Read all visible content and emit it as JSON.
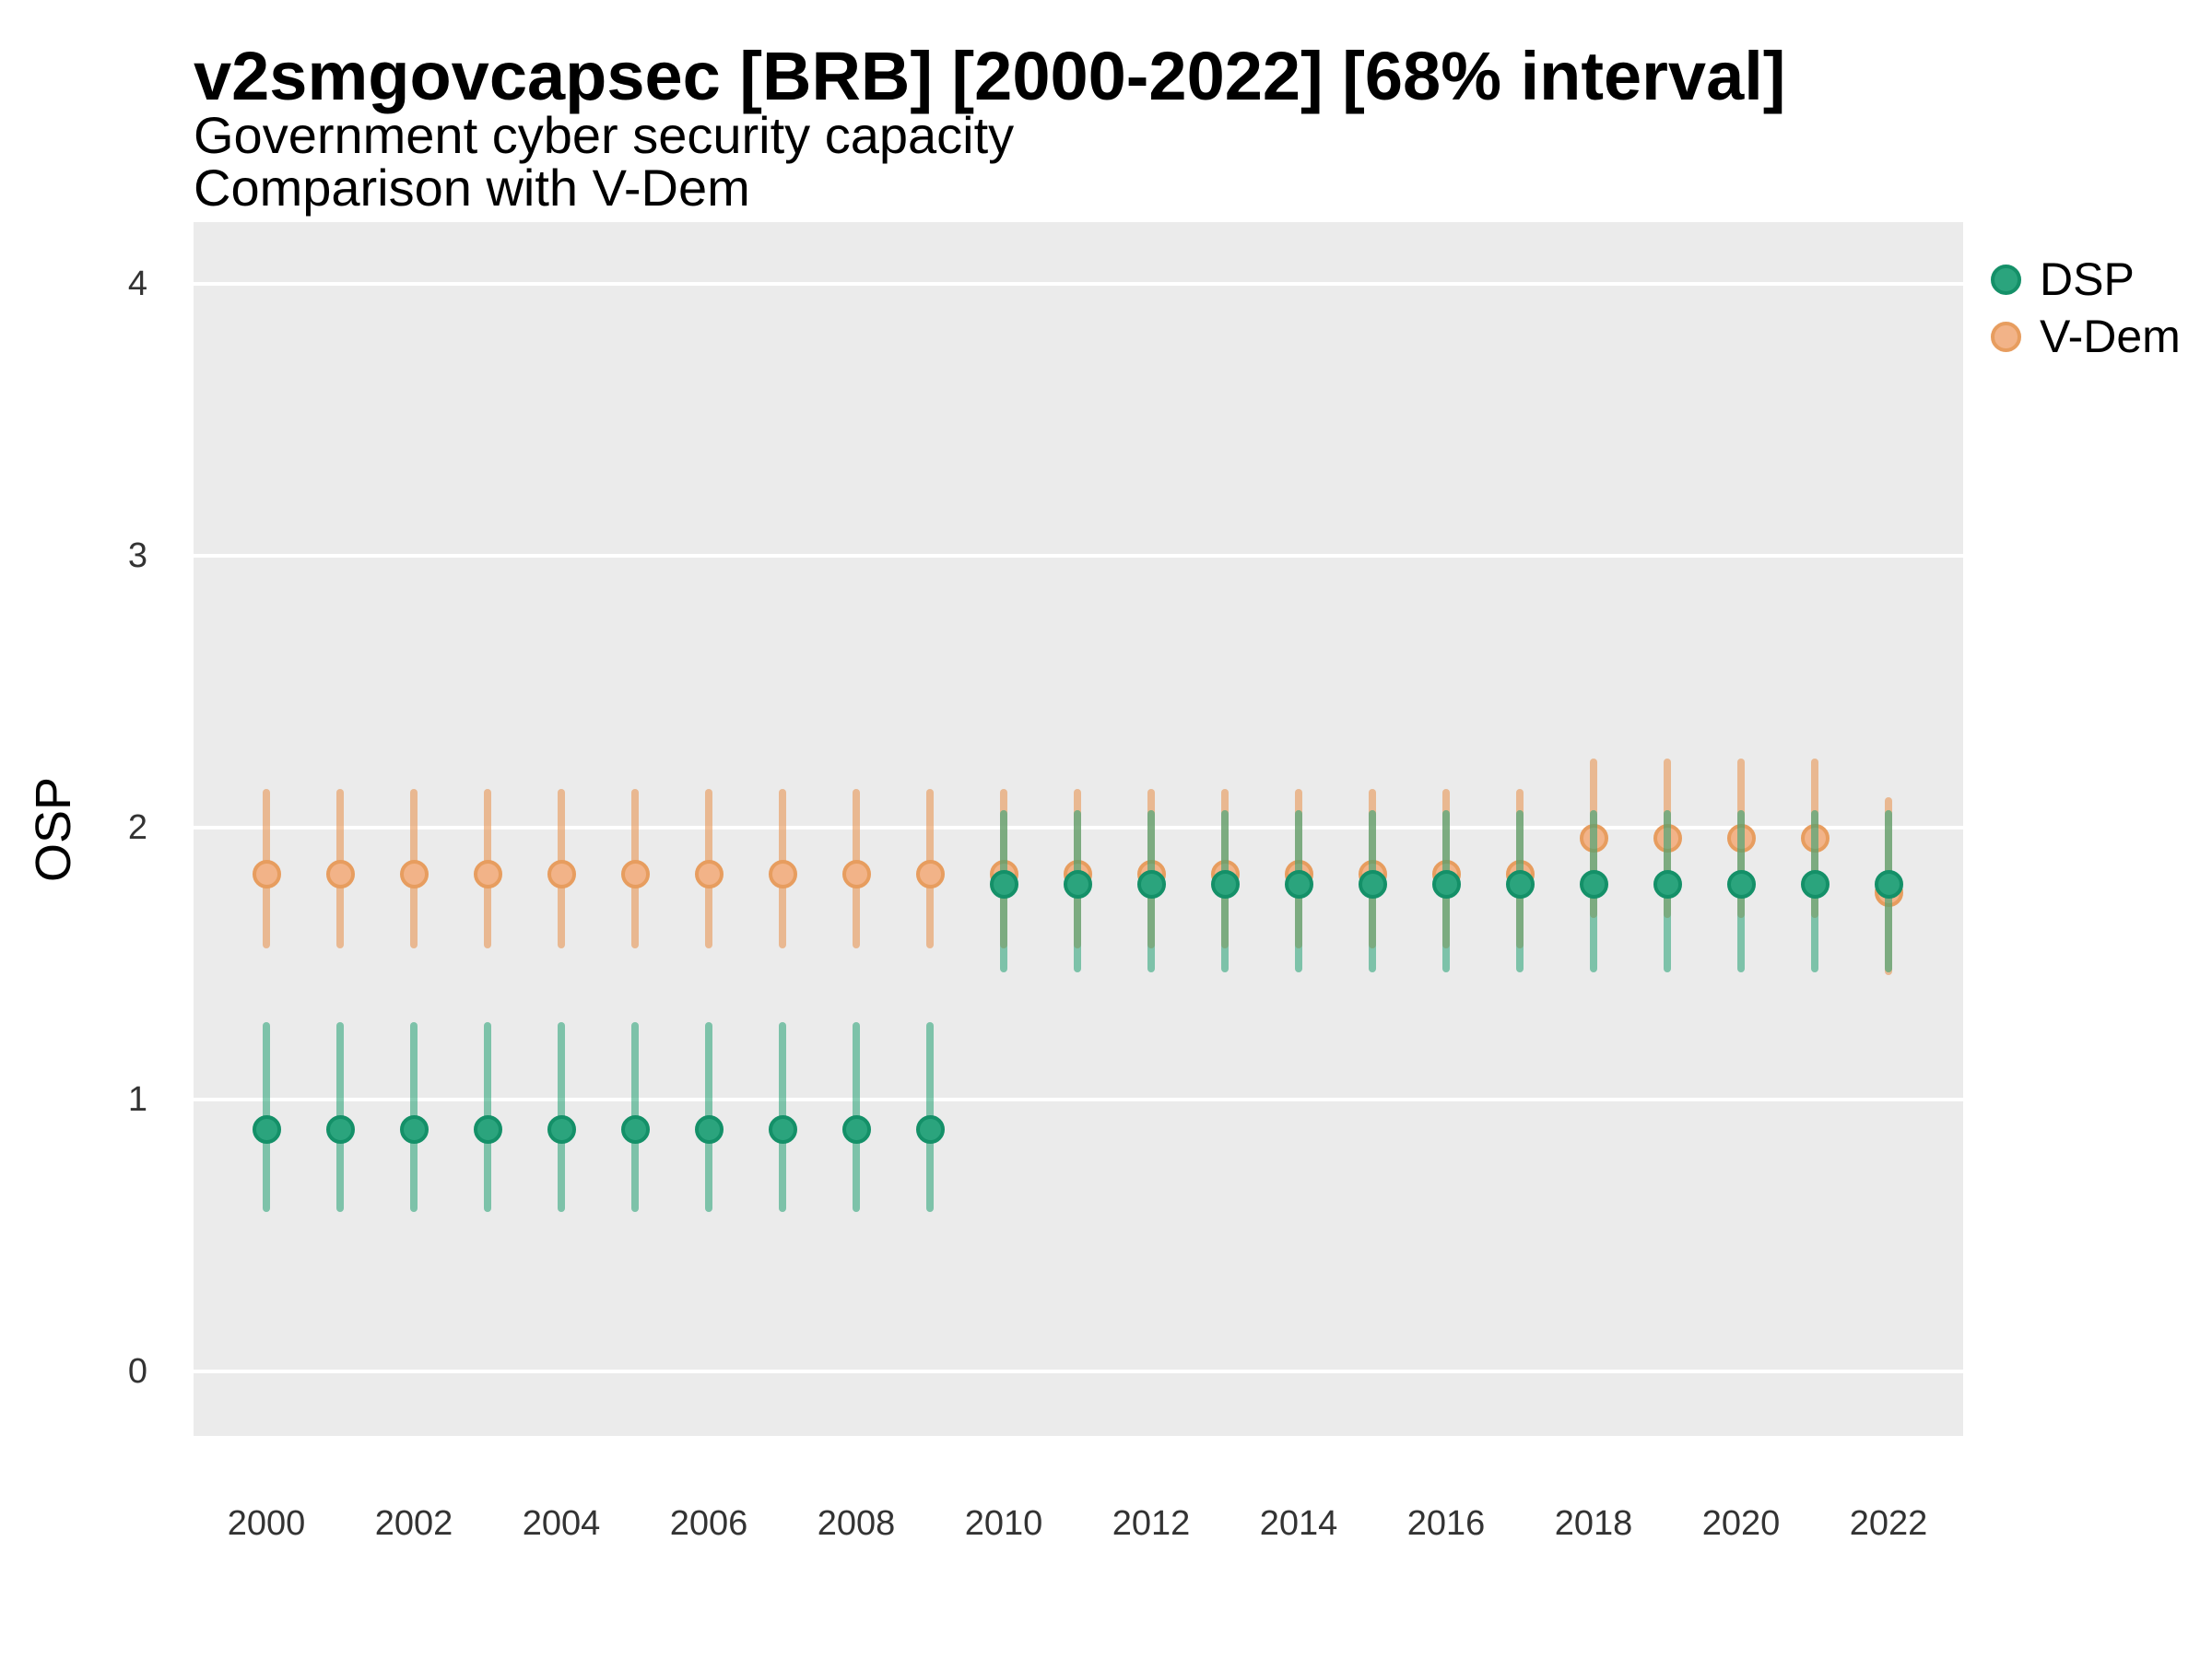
{
  "title": "v2smgovcapsec [BRB] [2000-2022] [68% interval]",
  "subtitle_line1": "Government cyber security capacity",
  "subtitle_line2": "Comparison with V-Dem",
  "y_axis": {
    "label": "OSP",
    "ticks": [
      0,
      1,
      2,
      3,
      4
    ]
  },
  "x_axis": {
    "ticks": [
      2000,
      2002,
      2004,
      2006,
      2008,
      2010,
      2012,
      2014,
      2016,
      2018,
      2020,
      2022
    ]
  },
  "legend": [
    {
      "label": "DSP",
      "color": "#2BA47D"
    },
    {
      "label": "V-Dem",
      "color": "#F2B388"
    }
  ],
  "colors": {
    "panel_background": "#EBEBEB",
    "gridline": "#FFFFFF",
    "dsp_fill": "#2BA47D",
    "dsp_stroke": "#149068",
    "vdem_fill": "#F2B388",
    "vdem_stroke": "#E79D5F"
  },
  "chart_data": {
    "type": "scatter",
    "title": "v2smgovcapsec [BRB] [2000-2022] [68% interval]",
    "subtitle": "Government cyber security capacity — Comparison with V-Dem",
    "xlabel": "",
    "ylabel": "OSP",
    "interval": "68%",
    "ylim": [
      -0.24,
      4.23
    ],
    "xlim": [
      1999,
      2023
    ],
    "grid": "major-horizontal",
    "legend_position": "top-right",
    "x": [
      2000,
      2001,
      2002,
      2003,
      2004,
      2005,
      2006,
      2007,
      2008,
      2009,
      2010,
      2011,
      2012,
      2013,
      2014,
      2015,
      2016,
      2017,
      2018,
      2019,
      2020,
      2021,
      2022
    ],
    "series": [
      {
        "name": "DSP",
        "center": [
          0.89,
          0.89,
          0.89,
          0.89,
          0.89,
          0.89,
          0.89,
          0.89,
          0.89,
          0.89,
          1.79,
          1.79,
          1.79,
          1.79,
          1.79,
          1.79,
          1.79,
          1.79,
          1.79,
          1.79,
          1.79,
          1.79,
          1.79
        ],
        "lo": [
          0.6,
          0.6,
          0.6,
          0.6,
          0.6,
          0.6,
          0.6,
          0.6,
          0.6,
          0.6,
          1.48,
          1.48,
          1.48,
          1.48,
          1.48,
          1.48,
          1.48,
          1.48,
          1.48,
          1.48,
          1.48,
          1.48,
          1.48
        ],
        "hi": [
          1.27,
          1.27,
          1.27,
          1.27,
          1.27,
          1.27,
          1.27,
          1.27,
          1.27,
          1.27,
          2.05,
          2.05,
          2.05,
          2.05,
          2.05,
          2.05,
          2.05,
          2.05,
          2.05,
          2.05,
          2.05,
          2.05,
          2.05
        ]
      },
      {
        "name": "V-Dem",
        "center": [
          1.83,
          1.83,
          1.83,
          1.83,
          1.83,
          1.83,
          1.83,
          1.83,
          1.83,
          1.83,
          1.83,
          1.83,
          1.83,
          1.83,
          1.83,
          1.83,
          1.83,
          1.83,
          1.96,
          1.96,
          1.96,
          1.96,
          1.76
        ],
        "lo": [
          1.57,
          1.57,
          1.57,
          1.57,
          1.57,
          1.57,
          1.57,
          1.57,
          1.57,
          1.57,
          1.57,
          1.57,
          1.57,
          1.57,
          1.57,
          1.57,
          1.57,
          1.57,
          1.68,
          1.68,
          1.68,
          1.68,
          1.47
        ],
        "hi": [
          2.13,
          2.13,
          2.13,
          2.13,
          2.13,
          2.13,
          2.13,
          2.13,
          2.13,
          2.13,
          2.13,
          2.13,
          2.13,
          2.13,
          2.13,
          2.13,
          2.13,
          2.13,
          2.24,
          2.24,
          2.24,
          2.24,
          2.1
        ]
      }
    ]
  }
}
